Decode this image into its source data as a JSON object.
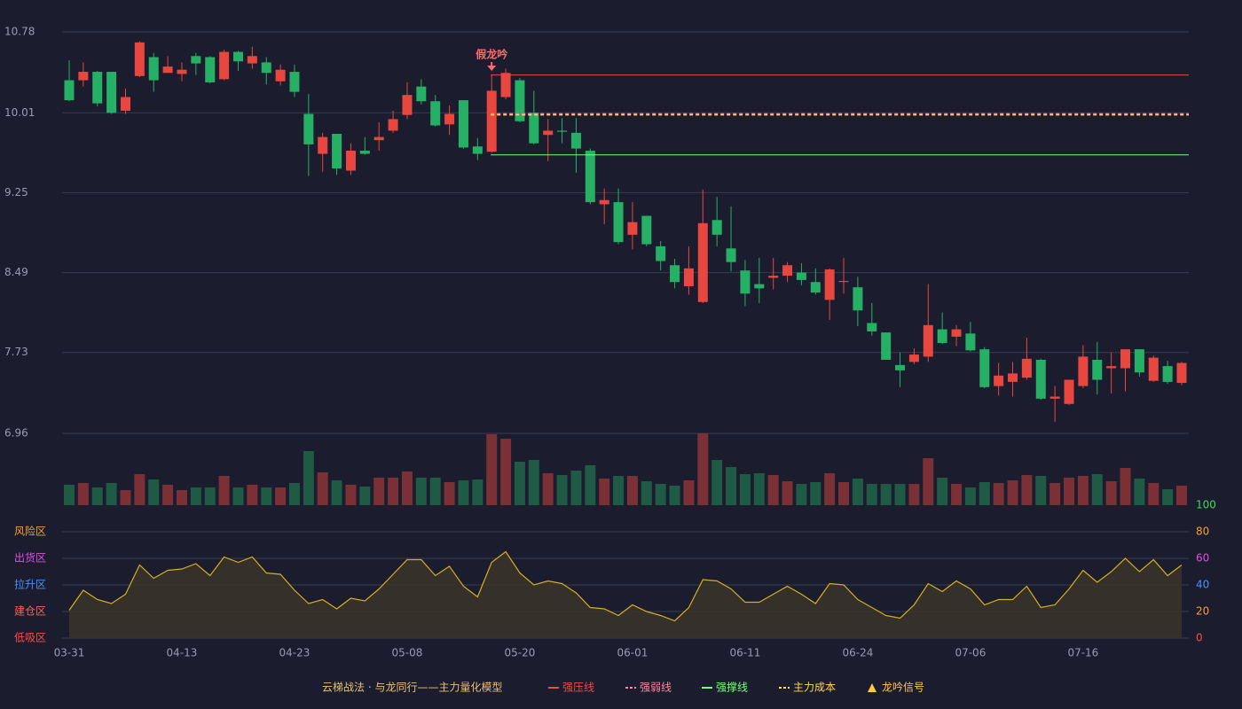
{
  "chart_data": {
    "type": "candlestick",
    "categories": [
      "03-31",
      null,
      null,
      null,
      null,
      null,
      null,
      null,
      "04-13",
      null,
      null,
      null,
      null,
      null,
      null,
      null,
      "04-23",
      null,
      null,
      null,
      null,
      null,
      null,
      null,
      "05-08",
      null,
      null,
      null,
      null,
      null,
      null,
      null,
      "05-20",
      null,
      null,
      null,
      null,
      null,
      null,
      null,
      "06-01",
      null,
      null,
      null,
      null,
      null,
      null,
      null,
      "06-11",
      null,
      null,
      null,
      null,
      null,
      null,
      null,
      "06-24",
      null,
      null,
      null,
      null,
      null,
      null,
      null,
      "07-06",
      null,
      null,
      null,
      null,
      null,
      null,
      null,
      "07-16",
      null,
      null,
      null,
      null,
      null,
      null,
      null
    ],
    "open": [
      10.32,
      10.32,
      10.4,
      10.4,
      10.03,
      10.36,
      10.54,
      10.39,
      10.38,
      10.55,
      10.54,
      10.33,
      10.59,
      10.48,
      10.49,
      10.31,
      10.4,
      10.0,
      9.62,
      9.81,
      9.46,
      9.65,
      9.75,
      9.84,
      9.99,
      10.26,
      10.12,
      9.9,
      10.13,
      9.69,
      9.64,
      10.16,
      10.32,
      10.01,
      9.8,
      9.84,
      9.82,
      9.65,
      9.14,
      9.16,
      8.85,
      9.03,
      8.74,
      8.56,
      8.36,
      8.21,
      8.99,
      8.72,
      8.51,
      8.38,
      8.44,
      8.46,
      8.49,
      8.4,
      8.23,
      8.4,
      8.35,
      8.01,
      7.92,
      7.61,
      7.64,
      7.69,
      7.95,
      7.88,
      7.91,
      7.76,
      7.41,
      7.45,
      7.49,
      7.66,
      7.29,
      7.24,
      7.41,
      7.66,
      7.58,
      7.58,
      7.76,
      7.46,
      7.6,
      7.44
    ],
    "high": [
      10.51,
      10.49,
      10.41,
      10.4,
      10.24,
      10.69,
      10.58,
      10.55,
      10.49,
      10.58,
      10.55,
      10.61,
      10.6,
      10.64,
      10.54,
      10.47,
      10.47,
      10.19,
      9.82,
      9.81,
      9.72,
      9.78,
      9.92,
      10.03,
      10.3,
      10.33,
      10.18,
      10.08,
      10.13,
      9.77,
      10.37,
      10.43,
      10.34,
      10.22,
      9.95,
      9.96,
      9.96,
      9.67,
      9.29,
      9.29,
      9.16,
      9.03,
      8.79,
      8.62,
      8.74,
      9.28,
      9.21,
      9.12,
      8.61,
      8.63,
      8.63,
      8.59,
      8.58,
      8.53,
      8.53,
      8.63,
      8.45,
      8.2,
      7.92,
      7.73,
      7.77,
      8.38,
      8.11,
      7.99,
      8.02,
      7.78,
      7.63,
      7.64,
      7.87,
      7.67,
      7.41,
      7.47,
      7.8,
      7.83,
      7.73,
      7.76,
      7.76,
      7.7,
      7.65,
      7.64
    ],
    "low": [
      10.12,
      10.26,
      10.07,
      10.0,
      10.0,
      10.35,
      10.21,
      10.39,
      10.31,
      10.37,
      10.29,
      10.32,
      10.41,
      10.43,
      10.28,
      10.27,
      10.16,
      9.41,
      9.45,
      9.42,
      9.42,
      9.61,
      9.65,
      9.82,
      9.95,
      10.09,
      9.88,
      9.8,
      9.67,
      9.56,
      9.63,
      10.14,
      9.92,
      9.71,
      9.55,
      9.72,
      9.44,
      9.14,
      8.95,
      8.76,
      8.71,
      8.74,
      8.51,
      8.34,
      8.28,
      8.2,
      8.74,
      8.5,
      8.17,
      8.2,
      8.33,
      8.4,
      8.37,
      8.28,
      8.04,
      8.29,
      7.98,
      7.89,
      7.66,
      7.4,
      7.62,
      7.64,
      7.81,
      7.79,
      7.74,
      7.39,
      7.32,
      7.31,
      7.47,
      7.28,
      7.07,
      7.23,
      7.39,
      7.33,
      7.34,
      7.36,
      7.5,
      7.45,
      7.43,
      7.42
    ],
    "close": [
      10.13,
      10.4,
      10.1,
      10.01,
      10.16,
      10.68,
      10.32,
      10.45,
      10.42,
      10.48,
      10.3,
      10.59,
      10.5,
      10.55,
      10.39,
      10.42,
      10.21,
      9.71,
      9.78,
      9.48,
      9.65,
      9.62,
      9.78,
      9.95,
      10.18,
      10.12,
      9.89,
      10.0,
      9.68,
      9.62,
      10.22,
      10.39,
      9.93,
      9.72,
      9.84,
      9.83,
      9.67,
      9.16,
      9.18,
      8.78,
      8.97,
      8.76,
      8.6,
      8.4,
      8.53,
      8.96,
      8.85,
      8.59,
      8.29,
      8.34,
      8.46,
      8.56,
      8.42,
      8.3,
      8.52,
      8.41,
      8.13,
      7.93,
      7.66,
      7.56,
      7.71,
      7.99,
      7.82,
      7.95,
      7.75,
      7.4,
      7.51,
      7.53,
      7.67,
      7.29,
      7.31,
      7.47,
      7.69,
      7.47,
      7.6,
      7.76,
      7.54,
      7.68,
      7.45,
      7.63
    ],
    "up_color": "#e8473f",
    "down_color": "#26b066",
    "ylim": [
      6.96,
      10.78
    ],
    "yticks": [
      10.78,
      10.01,
      9.25,
      8.49,
      7.73,
      6.96
    ],
    "grid": true,
    "levels": [
      {
        "name": "强压线",
        "value": 10.37,
        "color": "#e84b4b",
        "style": "solid",
        "start": 30
      },
      {
        "name": "强弱线",
        "value": 10.0,
        "color": "#ff8a9a",
        "style": "dashed",
        "start": 30
      },
      {
        "name": "强撑线",
        "value": 9.61,
        "color": "#7cfc7c",
        "style": "solid",
        "start": 30
      },
      {
        "name": "主力成本",
        "value": 9.99,
        "color": "#ffd84a",
        "style": "dashed",
        "start": 30
      }
    ],
    "annotation": {
      "text": "假龙吟",
      "index": 30,
      "color": "#ff6b6b"
    },
    "signal": {
      "name": "龙吟信号",
      "color": "#ffc940"
    },
    "legend_title": "云梯战法 · 与龙同行——主力量化模型",
    "volume": {
      "type": "bar",
      "up_color": "#7a3035",
      "down_color": "#1f5a45",
      "values": [
        23,
        25,
        20,
        25,
        17,
        35,
        29,
        23,
        17,
        20,
        20,
        33,
        20,
        23,
        20,
        20,
        25,
        61,
        37,
        28,
        23,
        21,
        31,
        31,
        38,
        31,
        31,
        26,
        28,
        29,
        80,
        75,
        49,
        51,
        36,
        34,
        39,
        45,
        30,
        33,
        33,
        27,
        24,
        22,
        28,
        81,
        51,
        43,
        35,
        36,
        34,
        27,
        24,
        26,
        36,
        26,
        30,
        24,
        24,
        24,
        24,
        53,
        31,
        24,
        20,
        26,
        25,
        28,
        34,
        33,
        25,
        31,
        33,
        35,
        27,
        42,
        30,
        25,
        18,
        22
      ]
    },
    "indicator": {
      "type": "line",
      "color": "#d4b020",
      "fill": "#3a3428",
      "values": [
        21,
        36,
        29,
        26,
        33,
        55,
        45,
        51,
        52,
        56,
        47,
        61,
        57,
        61,
        49,
        48,
        36,
        26,
        29,
        22,
        30,
        28,
        37,
        48,
        59,
        59,
        47,
        54,
        39,
        31,
        57,
        65,
        49,
        40,
        43,
        41,
        34,
        23,
        22,
        17,
        25,
        20,
        17,
        13,
        23,
        44,
        43,
        37,
        27,
        27,
        33,
        39,
        33,
        26,
        41,
        40,
        29,
        23,
        17,
        15,
        25,
        41,
        35,
        43,
        37,
        25,
        29,
        29,
        39,
        23,
        25,
        37,
        51,
        42,
        50,
        60,
        50,
        59,
        47,
        55
      ],
      "ylim": [
        0,
        100
      ],
      "yticks": [
        100,
        80,
        60,
        40,
        20,
        0
      ],
      "ytick_colors": [
        "#3ddc5a",
        "#f0a030",
        "#e050e0",
        "#4a90ff",
        "#f0a030",
        "#ff4a4a"
      ],
      "zones": [
        {
          "label": "风险区",
          "value": 80,
          "color": "#f0a030"
        },
        {
          "label": "出货区",
          "value": 60,
          "color": "#e050e0"
        },
        {
          "label": "拉升区",
          "value": 40,
          "color": "#4a90ff"
        },
        {
          "label": "建仓区",
          "value": 20,
          "color": "#ff6060"
        },
        {
          "label": "低吸区",
          "value": 0,
          "color": "#ff4a4a"
        }
      ]
    }
  }
}
